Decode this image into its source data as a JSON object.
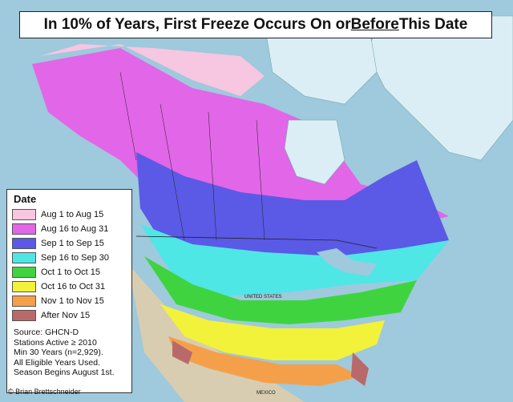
{
  "title": {
    "before": "In 10% of Years, First Freeze Occurs On or ",
    "emphasis": "Before",
    "after": " This Date"
  },
  "legend": {
    "title": "Date",
    "items": [
      {
        "label": "Aug 1 to Aug 15",
        "color": "#f7c6e0"
      },
      {
        "label": "Aug 16 to Aug 31",
        "color": "#e266e8"
      },
      {
        "label": "Sep 1 to Sep 15",
        "color": "#5a5ae6"
      },
      {
        "label": "Sep 16 to Sep 30",
        "color": "#4fe6e6"
      },
      {
        "label": "Oct 1 to Oct 15",
        "color": "#3fd43f"
      },
      {
        "label": "Oct 16 to Oct 31",
        "color": "#f2f23a"
      },
      {
        "label": "Nov 1 to Nov 15",
        "color": "#f4a04a"
      },
      {
        "label": "After Nov 15",
        "color": "#b86a6a"
      }
    ]
  },
  "notes": [
    "Source: GHCN-D",
    "Stations Active ≥ 2010",
    "Min 30 Years (n=2,929).",
    "All Eligible Years Used.",
    "Season Begins August 1st."
  ],
  "credit": "© Brian Brettschneider",
  "map_labels": {
    "country": "UNITED STATES",
    "mexico": "MEXICO"
  },
  "colors": {
    "ocean": "#9fc9dc",
    "ice": "#dbeef5",
    "unshaded_land": "#d8cdb0"
  }
}
